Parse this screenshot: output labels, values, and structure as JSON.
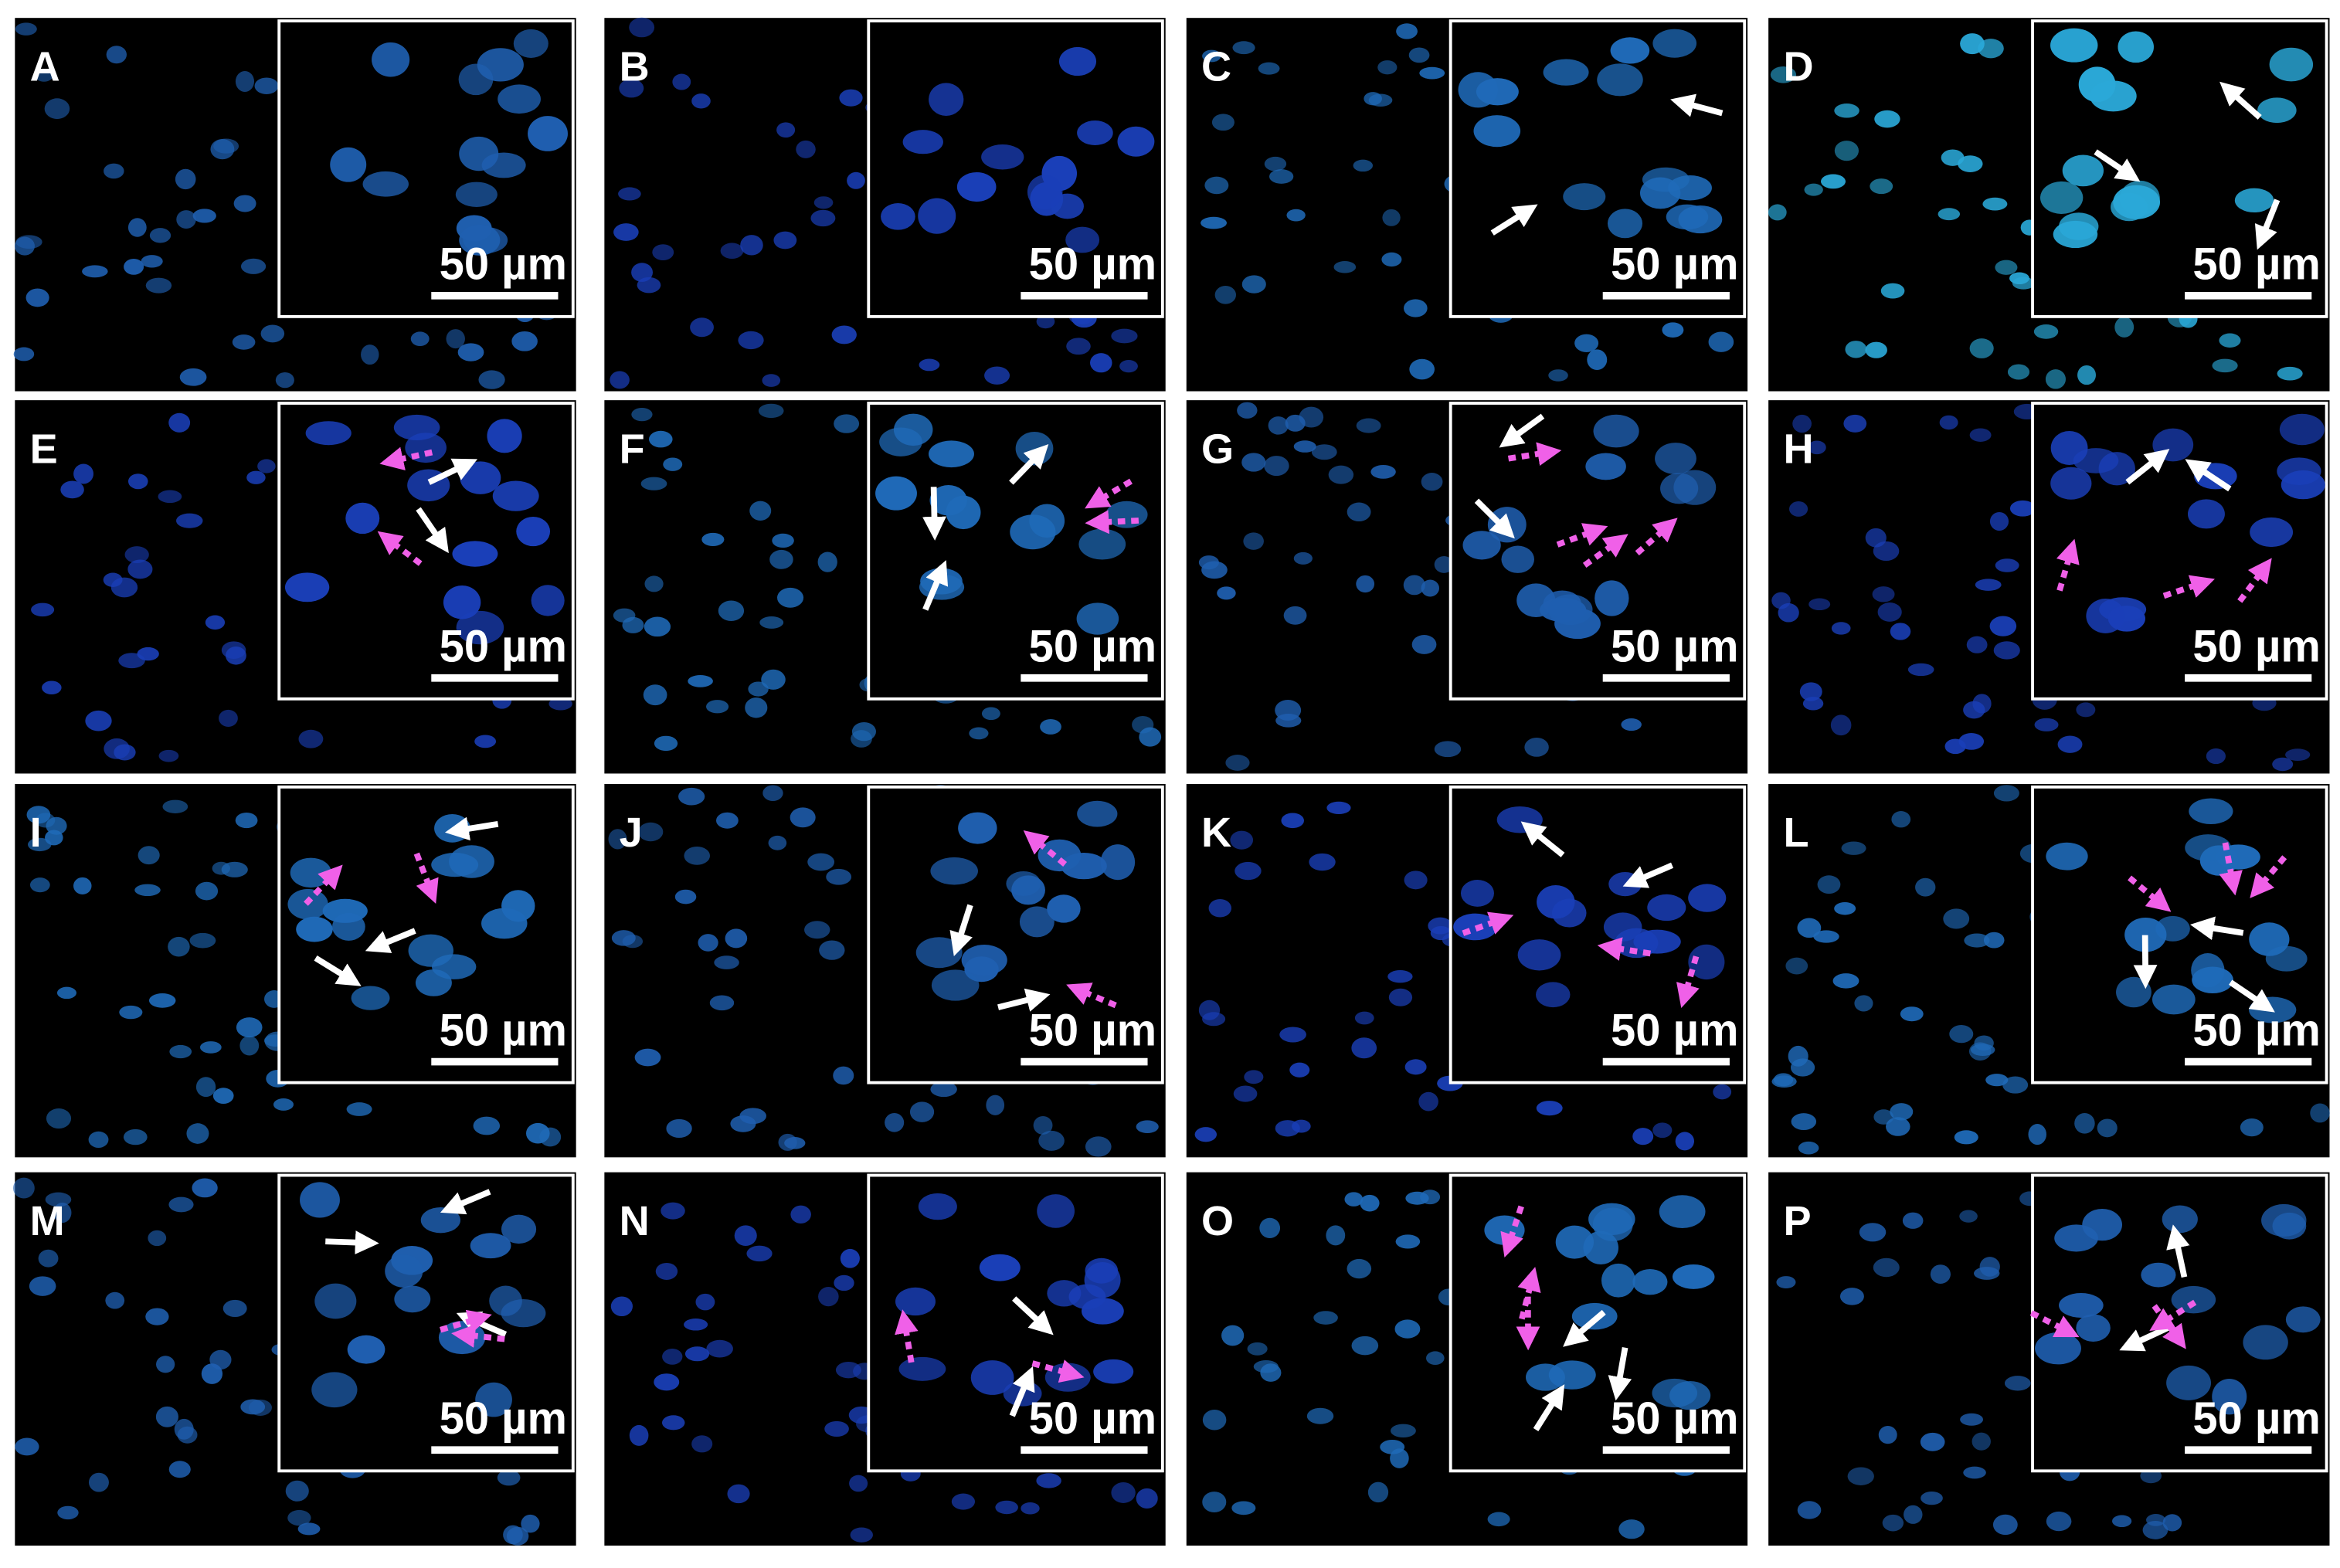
{
  "panels": [
    {
      "label": "A",
      "scale_bar": "50 µm"
    },
    {
      "label": "B",
      "scale_bar": "50 µm"
    },
    {
      "label": "C",
      "scale_bar": "50 µm"
    },
    {
      "label": "D",
      "scale_bar": "50 µm"
    },
    {
      "label": "E",
      "scale_bar": "50 µm"
    },
    {
      "label": "F",
      "scale_bar": "50 µm"
    },
    {
      "label": "G",
      "scale_bar": "50 µm"
    },
    {
      "label": "H",
      "scale_bar": "50 µm"
    },
    {
      "label": "I",
      "scale_bar": "50 µm"
    },
    {
      "label": "J",
      "scale_bar": "50 µm"
    },
    {
      "label": "K",
      "scale_bar": "50 µm"
    },
    {
      "label": "L",
      "scale_bar": "50 µm"
    },
    {
      "label": "M",
      "scale_bar": "50 µm"
    },
    {
      "label": "N",
      "scale_bar": "50 µm"
    },
    {
      "label": "O",
      "scale_bar": "50 µm"
    },
    {
      "label": "P",
      "scale_bar": "50 µm"
    }
  ]
}
